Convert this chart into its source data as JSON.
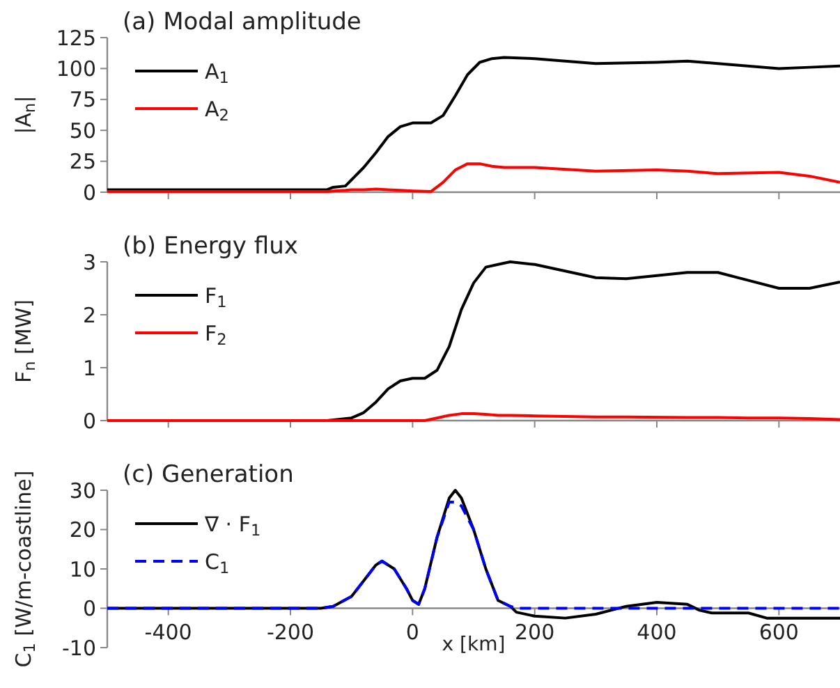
{
  "chart_data": [
    {
      "type": "line",
      "title": "(a) Modal amplitude",
      "ylabel": "|A$_{n}$|",
      "xlim": [
        -500,
        700
      ],
      "xticks": [
        {
          "value": -400,
          "label": null
        },
        {
          "value": -200,
          "label": null
        },
        {
          "value": 0,
          "label": null
        },
        {
          "value": 200,
          "label": null
        },
        {
          "value": 400,
          "label": null
        },
        {
          "value": 600,
          "label": null
        }
      ],
      "ylim": [
        0,
        125
      ],
      "yticks": [
        0,
        25,
        50,
        75,
        100,
        125
      ],
      "tick_labels": "y",
      "legend": "top left",
      "grid": false,
      "x": [
        -500,
        -140,
        -130,
        -110,
        -100,
        -80,
        -60,
        -40,
        -20,
        0,
        30,
        50,
        70,
        90,
        110,
        130,
        150,
        200,
        300,
        400,
        450,
        500,
        600,
        650,
        700
      ],
      "series": [
        {
          "name": "A$_{1}$",
          "color": "#000000",
          "values": [
            2,
            2,
            4,
            5,
            10,
            20,
            32,
            45,
            53,
            56,
            56,
            62,
            78,
            95,
            105,
            108,
            109,
            108,
            104,
            105,
            106,
            104,
            100,
            101,
            102
          ]
        },
        {
          "name": "A$_{2}$",
          "color": "#ff0000",
          "values": [
            0.5,
            0.5,
            1,
            1.5,
            2,
            2,
            2.5,
            2,
            1.5,
            1,
            0.5,
            8,
            18,
            23,
            23,
            21,
            20,
            20,
            17,
            18,
            17,
            15,
            16,
            13,
            8
          ]
        }
      ]
    },
    {
      "type": "line",
      "title": "(b) Energy flux",
      "ylabel": "F$_{n}$ [MW]",
      "xlim": [
        -500,
        700
      ],
      "xticks": [
        {
          "value": -400,
          "label": null
        },
        {
          "value": -200,
          "label": null
        },
        {
          "value": 0,
          "label": null
        },
        {
          "value": 200,
          "label": null
        },
        {
          "value": 400,
          "label": null
        },
        {
          "value": 600,
          "label": null
        }
      ],
      "ylim": [
        0,
        3
      ],
      "yticks": [
        0,
        1,
        2,
        3
      ],
      "tick_labels": "y",
      "legend": "top left",
      "grid": false,
      "x": [
        -500,
        -140,
        -100,
        -80,
        -60,
        -40,
        -20,
        0,
        20,
        40,
        60,
        80,
        100,
        120,
        140,
        160,
        200,
        300,
        350,
        450,
        500,
        550,
        600,
        650,
        700
      ],
      "series": [
        {
          "name": "F$_{1}$",
          "color": "#000000",
          "values": [
            0,
            0,
            0.05,
            0.15,
            0.35,
            0.6,
            0.75,
            0.8,
            0.8,
            0.95,
            1.4,
            2.1,
            2.6,
            2.9,
            2.95,
            3,
            2.95,
            2.7,
            2.68,
            2.8,
            2.8,
            2.65,
            2.5,
            2.5,
            2.62
          ]
        },
        {
          "name": "F$_{2}$",
          "color": "#ff0000",
          "values": [
            0,
            0,
            0,
            0,
            0,
            0,
            0,
            0,
            0,
            0.05,
            0.1,
            0.13,
            0.13,
            0.12,
            0.1,
            0.1,
            0.09,
            0.07,
            0.07,
            0.06,
            0.06,
            0.05,
            0.05,
            0.04,
            0.02
          ]
        }
      ]
    },
    {
      "type": "line",
      "title": "(c) Generation",
      "ylabel": "C$_{1}$ [W/m-coastline]",
      "xlabel": "x [km]",
      "xlim": [
        -500,
        700
      ],
      "xticks": [
        -400,
        -200,
        0,
        200,
        400,
        600
      ],
      "ylim": [
        -10,
        30
      ],
      "yticks": [
        -10,
        0,
        10,
        20,
        30
      ],
      "legend": "top left",
      "grid": false,
      "x": [
        -500,
        -150,
        -130,
        -100,
        -80,
        -60,
        -50,
        -30,
        -10,
        0,
        10,
        20,
        40,
        60,
        70,
        80,
        100,
        120,
        140,
        160,
        170,
        200,
        250,
        300,
        350,
        400,
        450,
        470,
        490,
        550,
        580,
        700
      ],
      "series": [
        {
          "name": "∇ · F$_{1}$",
          "color": "#000000",
          "line_style": "solid",
          "values": [
            0,
            0,
            0.5,
            3,
            7,
            11,
            12,
            10,
            5,
            2,
            1,
            5,
            18,
            28,
            30,
            28,
            20,
            10,
            2,
            0.5,
            -1,
            -2,
            -2.5,
            -1.5,
            0.5,
            1.5,
            1,
            -0.5,
            -1.2,
            -1.2,
            -2.5,
            -2.5
          ]
        },
        {
          "name": "C$_{1}$",
          "color": "#0000ff",
          "line_style": "dashed",
          "values": [
            0,
            0,
            0.5,
            3,
            7,
            11,
            12,
            10,
            5,
            2,
            1,
            5,
            18,
            27,
            27,
            26,
            20,
            10,
            2,
            0.5,
            0,
            0,
            0,
            0,
            0,
            0,
            0,
            0,
            0,
            0,
            0,
            0
          ]
        }
      ]
    }
  ]
}
